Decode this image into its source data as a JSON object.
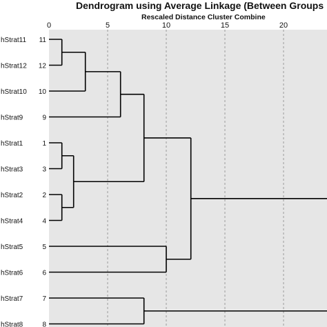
{
  "chart_data": {
    "type": "dendrogram",
    "title": "Dendrogram using Average Linkage (Between Groups",
    "xlabel": "Rescaled Distance Cluster Combine",
    "xlim": [
      0,
      25
    ],
    "xticks": [
      0,
      5,
      10,
      15,
      20
    ],
    "grid": true,
    "leaves": [
      {
        "label": "hStrat11",
        "id": "11"
      },
      {
        "label": "hStrat12",
        "id": "12"
      },
      {
        "label": "hStrat10",
        "id": "10"
      },
      {
        "label": "hStrat9",
        "id": "9"
      },
      {
        "label": "hStrat1",
        "id": "1"
      },
      {
        "label": "hStrat3",
        "id": "3"
      },
      {
        "label": "hStrat2",
        "id": "2"
      },
      {
        "label": "hStrat4",
        "id": "4"
      },
      {
        "label": "hStrat5",
        "id": "5"
      },
      {
        "label": "hStrat6",
        "id": "6"
      },
      {
        "label": "hStrat7",
        "id": "7"
      },
      {
        "label": "hStrat8",
        "id": "8"
      }
    ],
    "merges": [
      {
        "id": "m1",
        "a": "L0",
        "b": "L1",
        "distance": 1.1
      },
      {
        "id": "m2",
        "a": "m1",
        "b": "L2",
        "distance": 3.1
      },
      {
        "id": "m3",
        "a": "m2",
        "b": "L3",
        "distance": 6.1
      },
      {
        "id": "m4",
        "a": "L4",
        "b": "L5",
        "distance": 1.1
      },
      {
        "id": "m5",
        "a": "L6",
        "b": "L7",
        "distance": 1.1
      },
      {
        "id": "m6",
        "a": "m4",
        "b": "m5",
        "distance": 2.1
      },
      {
        "id": "m7",
        "a": "m3",
        "b": "m6",
        "distance": 8.1
      },
      {
        "id": "m8",
        "a": "L8",
        "b": "L9",
        "distance": 10.0
      },
      {
        "id": "m9",
        "a": "m7",
        "b": "m8",
        "distance": 12.1
      },
      {
        "id": "m10",
        "a": "L10",
        "b": "L11",
        "distance": 8.1
      },
      {
        "id": "m11",
        "a": "m9",
        "b": "m10",
        "distance": 25
      }
    ]
  }
}
